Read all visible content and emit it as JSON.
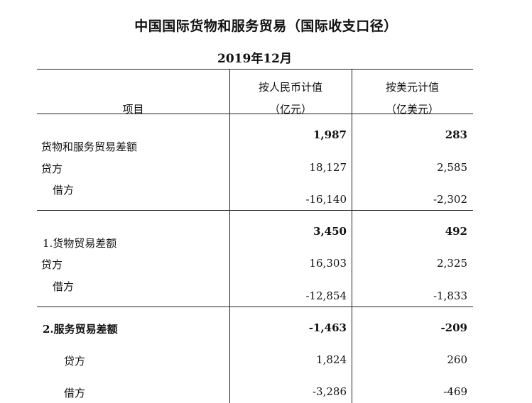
{
  "title": "中国国际货物和服务贸易（国际收支口径）",
  "period": "2019年12月",
  "header": {
    "item": "项目",
    "rmb_line1": "按人民币计值",
    "rmb_line2": "（亿元）",
    "usd_line1": "按美元计值",
    "usd_line2": "（亿美元）"
  },
  "rows": [
    {
      "label": "货物和服务贸易差额",
      "rmb": "1,987",
      "usd": "283"
    },
    {
      "label": "贷方",
      "rmb": "18,127",
      "usd": "2,585"
    },
    {
      "label": "借方",
      "rmb": "-16,140",
      "usd": "-2,302"
    },
    {
      "label": "1.货物贸易差额",
      "rmb": "3,450",
      "usd": "492"
    },
    {
      "label": "贷方",
      "rmb": "16,303",
      "usd": "2,325"
    },
    {
      "label": "借方",
      "rmb": "-12,854",
      "usd": "-1,833"
    },
    {
      "label": "2.服务贸易差额",
      "rmb": "-1,463",
      "usd": "-209"
    },
    {
      "label": "贷方",
      "rmb": "1,824",
      "usd": "260"
    },
    {
      "label": "借方",
      "rmb": "-3,286",
      "usd": "-469"
    }
  ]
}
